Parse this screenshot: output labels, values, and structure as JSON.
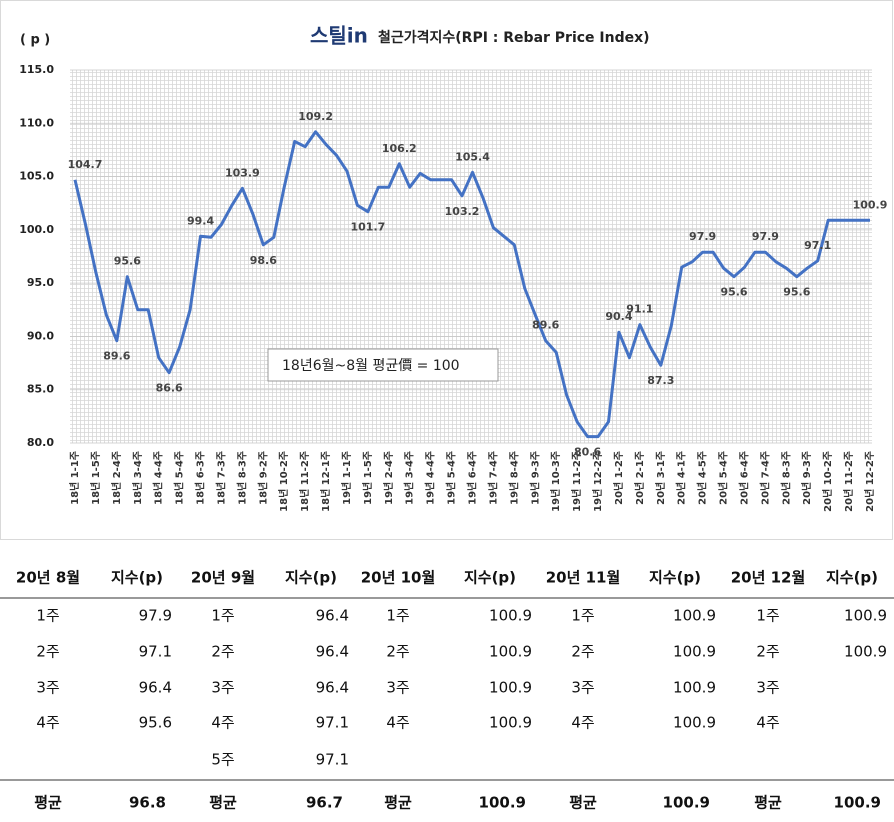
{
  "chart_data": {
    "type": "line",
    "logo": "스틸in",
    "title": "철근가격지수(RPI : Rebar Price Index)",
    "y_label": "( p )",
    "annotation": "18년6월~8월 평균價 = 100",
    "categories": [
      "18년 1-1주",
      null,
      "18년 1-5주",
      null,
      "18년 2-4주",
      null,
      "18년 3-4주",
      null,
      "18년 4-4주",
      null,
      "18년 5-4주",
      null,
      "18년 6-3주",
      null,
      "18년 7-3주",
      null,
      "18년 8-3주",
      null,
      "18년 9-2주",
      null,
      "18년 10-2주",
      null,
      "18년 11-2주",
      null,
      "18년 12-1주",
      null,
      "19년 1-1주",
      null,
      "19년 1-5주",
      null,
      "19년 2-4주",
      null,
      "19년 3-4주",
      null,
      "19년 4-4주",
      null,
      "19년 5-4주",
      null,
      "19년 6-4주",
      null,
      "19년 7-4주",
      null,
      "19년 8-4주",
      null,
      "19년 9-3주",
      null,
      "19년 10-3주",
      null,
      "19년 11-2주",
      null,
      "19년 12-2주",
      null,
      "20년 1-2주",
      null,
      "20년 2-1주",
      null,
      "20년 3-1주",
      null,
      "20년 4-1주",
      null,
      "20년 4-5주",
      null,
      "20년 5-4주",
      null,
      "20년 6-4주",
      null,
      "20년 7-4주",
      null,
      "20년 8-3주",
      null,
      "20년 9-3주",
      null,
      "20년 10-2주",
      null,
      "20년 11-2주",
      null,
      "20년 12-2주"
    ],
    "values": [
      104.7,
      100.5,
      96,
      92,
      89.6,
      95.6,
      92.5,
      92.5,
      88,
      86.6,
      89,
      92.5,
      99.4,
      99.3,
      100.5,
      102.3,
      103.9,
      101.5,
      98.6,
      99.3,
      104,
      108.3,
      107.8,
      109.2,
      108,
      107,
      105.5,
      102.3,
      101.7,
      104,
      104,
      106.2,
      104,
      105.3,
      104.7,
      104.7,
      104.7,
      103.2,
      105.4,
      103,
      100.2,
      99.4,
      98.6,
      94.5,
      92,
      89.6,
      88.5,
      84.5,
      82,
      80.6,
      80.6,
      82,
      90.4,
      88,
      91.1,
      89,
      87.3,
      91,
      96.5,
      97,
      97.9,
      97.9,
      96.4,
      95.6,
      96.5,
      97.9,
      97.9,
      97,
      96.4,
      95.6,
      96.4,
      97.1,
      100.9,
      100.9,
      100.9,
      100.9,
      100.9
    ],
    "value_labels": [
      "104.7",
      null,
      null,
      null,
      "89.6",
      "95.6",
      null,
      null,
      null,
      "86.6",
      null,
      null,
      "99.4",
      null,
      null,
      null,
      "103.9",
      null,
      "98.6",
      null,
      null,
      null,
      null,
      "109.2",
      null,
      null,
      null,
      null,
      "101.7",
      null,
      null,
      "106.2",
      null,
      null,
      null,
      null,
      null,
      "103.2",
      "105.4",
      null,
      null,
      null,
      null,
      null,
      null,
      "89.6",
      null,
      null,
      null,
      "80.6",
      null,
      null,
      "90.4",
      null,
      "91.1",
      null,
      "87.3",
      null,
      null,
      null,
      "97.9",
      null,
      null,
      "95.6",
      null,
      null,
      "97.9",
      null,
      null,
      "95.6",
      null,
      "97.1",
      null,
      null,
      null,
      null,
      "100.9"
    ],
    "color": "#4472c4",
    "ylim": [
      80,
      115
    ],
    "yticks": [
      {
        "value": 80,
        "label": "80.0"
      },
      {
        "value": 85,
        "label": "85.0"
      },
      {
        "value": 90,
        "label": "90.0"
      },
      {
        "value": 95,
        "label": "95.0"
      },
      {
        "value": 100,
        "label": "100.0"
      },
      {
        "value": 105,
        "label": "105.0"
      },
      {
        "value": 110,
        "label": "110.0"
      },
      {
        "value": 115,
        "label": "115.0"
      }
    ],
    "grid": true
  },
  "table": {
    "header": [
      "20년 8월",
      "지수(p)",
      "20년 9월",
      "지수(p)",
      "20년 10월",
      "지수(p)",
      "20년 11월",
      "지수(p)",
      "20년 12월",
      "지수(p)"
    ],
    "rows": [
      [
        "1주",
        97.9,
        "1주",
        96.4,
        "1주",
        100.9,
        "1주",
        100.9,
        "1주",
        100.9
      ],
      [
        "2주",
        97.1,
        "2주",
        96.4,
        "2주",
        100.9,
        "2주",
        100.9,
        "2주",
        100.9
      ],
      [
        "3주",
        96.4,
        "3주",
        96.4,
        "3주",
        100.9,
        "3주",
        100.9,
        "3주",
        null
      ],
      [
        "4주",
        95.6,
        "4주",
        97.1,
        "4주",
        100.9,
        "4주",
        100.9,
        "4주",
        null
      ],
      [
        null,
        null,
        "5주",
        97.1,
        null,
        null,
        null,
        null,
        null,
        null
      ]
    ],
    "footer": [
      "평균",
      96.8,
      "평균",
      96.7,
      "평균",
      100.9,
      "평균",
      100.9,
      "평균",
      100.9
    ]
  }
}
